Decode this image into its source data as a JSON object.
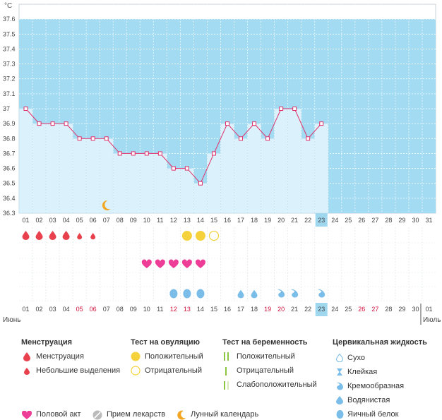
{
  "chart_data": {
    "type": "line",
    "unit": "°C",
    "ylim": [
      36.3,
      37.7
    ],
    "yticks": [
      36.3,
      36.4,
      36.5,
      36.6,
      36.7,
      36.8,
      36.9,
      37,
      37.1,
      37.2,
      37.3,
      37.4,
      37.5,
      37.6
    ],
    "days": [
      "01",
      "02",
      "03",
      "04",
      "05",
      "06",
      "07",
      "08",
      "09",
      "10",
      "11",
      "12",
      "13",
      "14",
      "15",
      "16",
      "17",
      "18",
      "19",
      "20",
      "21",
      "22",
      "23",
      "24",
      "25",
      "26",
      "27",
      "28",
      "29",
      "30",
      "31"
    ],
    "days_bottom": [
      "01",
      "02",
      "03",
      "04",
      "05",
      "06",
      "07",
      "08",
      "09",
      "10",
      "11",
      "12",
      "13",
      "14",
      "15",
      "16",
      "17",
      "18",
      "19",
      "20",
      "21",
      "22",
      "23",
      "24",
      "25",
      "26",
      "27",
      "28",
      "29",
      "30"
    ],
    "weekend_days": [
      "05",
      "06",
      "12",
      "13",
      "19",
      "20",
      "26",
      "27"
    ],
    "today": "23",
    "month_start": "Июнь",
    "next_month_start": "01",
    "next_month_label": "Июль",
    "series": [
      {
        "values": [
          37.0,
          36.9,
          36.9,
          36.9,
          36.8,
          36.8,
          36.8,
          36.7,
          36.7,
          36.7,
          36.7,
          36.6,
          36.6,
          36.5,
          36.7,
          36.9,
          36.8,
          36.9,
          36.8,
          37.0,
          37.0,
          36.8,
          36.9
        ]
      }
    ],
    "moon_day": 7,
    "events": {
      "menstruation_days": [
        1,
        2,
        3,
        4
      ],
      "spotting_days": [
        5,
        6
      ],
      "ovulation_positive_days": [
        13,
        14
      ],
      "ovulation_negative_days": [
        15
      ],
      "intercourse_days": [
        10,
        11,
        12,
        13,
        14
      ],
      "cervical_egg_white_days": [
        12,
        13,
        14
      ],
      "cervical_watery_days": [
        17,
        18
      ],
      "cervical_creamy_days": [
        20,
        21,
        23
      ]
    }
  },
  "colors": {
    "plot_bg": "#a3dcf2",
    "bar_fill": "#dbf2fc",
    "line": "#e0306a",
    "today_bg": "#9fd7ef",
    "drop": "#e8414d",
    "heart": "#ee3d96",
    "ovulation": "#f5d23c",
    "cervical": "#79bde8",
    "moon": "#f2a623",
    "pregnancy": "#8dc63f",
    "pill": "#bbbbbb"
  },
  "legend": {
    "menstruation": {
      "title": "Менструация",
      "items": [
        {
          "label": "Менструация",
          "icon": "drop-icon"
        },
        {
          "label": "Небольшие выделения",
          "icon": "small-drop-icon"
        }
      ]
    },
    "ovulation_test": {
      "title": "Тест на овуляцию",
      "items": [
        {
          "label": "Положительный",
          "icon": "filled-circle-icon"
        },
        {
          "label": "Отрицательный",
          "icon": "empty-circle-icon"
        }
      ]
    },
    "pregnancy_test": {
      "title": "Тест на беременность",
      "items": [
        {
          "label": "Положительный",
          "icon": "double-line-icon"
        },
        {
          "label": "Отрицательный",
          "icon": "single-line-icon"
        },
        {
          "label": "Слабоположительный",
          "icon": "faint-line-icon"
        }
      ]
    },
    "cervical_fluid": {
      "title": "Цервикальная жидкость",
      "items": [
        {
          "label": "Сухо",
          "icon": "dry-drop-icon"
        },
        {
          "label": "Клейкая",
          "icon": "sticky-icon"
        },
        {
          "label": "Кремообразная",
          "icon": "creamy-icon"
        },
        {
          "label": "Водянистая",
          "icon": "watery-drop-icon"
        },
        {
          "label": "Яичный белок",
          "icon": "egg-white-drop-icon"
        }
      ]
    },
    "other": [
      {
        "label": "Половой акт",
        "icon": "heart-icon"
      },
      {
        "label": "Прием лекарств",
        "icon": "pill-icon"
      },
      {
        "label": "Лунный календарь",
        "icon": "moon-icon"
      }
    ]
  }
}
